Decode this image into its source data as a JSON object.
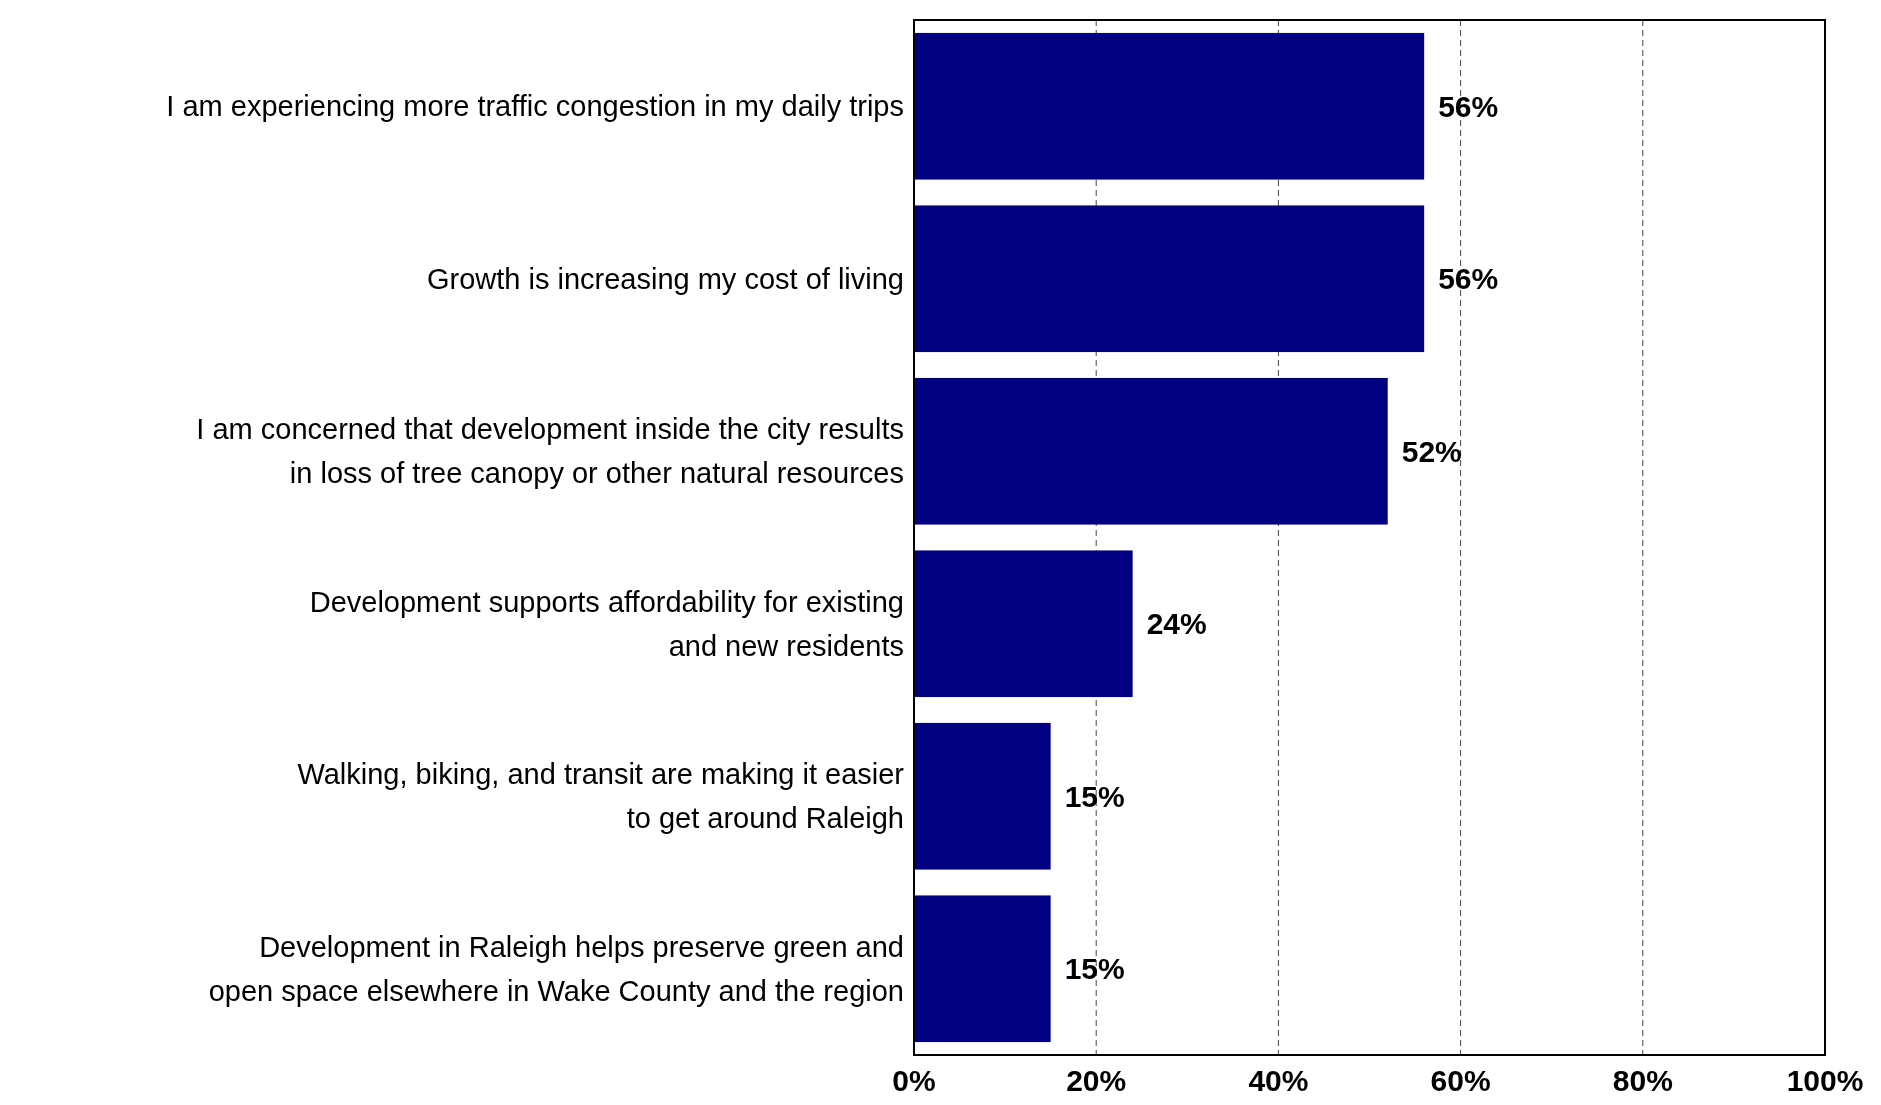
{
  "chart_data": {
    "type": "bar",
    "orientation": "horizontal",
    "categories": [
      "I am experiencing more traffic congestion in my daily trips",
      "Growth is increasing my cost of living",
      "I am concerned that development inside the city results\nin loss of tree canopy or other natural resources",
      "Development supports affordability for existing\nand new residents",
      "Walking, biking, and transit are making it easier\nto get around Raleigh",
      "Development in Raleigh helps preserve green and\nopen space elsewhere in Wake County and the region"
    ],
    "values": [
      56,
      56,
      52,
      24,
      15,
      15
    ],
    "color": "#000080",
    "value_labels": [
      "56%",
      "56%",
      "52%",
      "24%",
      "15%",
      "15%"
    ],
    "xlim": [
      0,
      100
    ],
    "xticks": [
      {
        "value": 0,
        "label": "0%"
      },
      {
        "value": 20,
        "label": "20%"
      },
      {
        "value": 40,
        "label": "40%"
      },
      {
        "value": 60,
        "label": "60%"
      },
      {
        "value": 80,
        "label": "80%"
      },
      {
        "value": 100,
        "label": "100%"
      }
    ],
    "grid": "x"
  }
}
